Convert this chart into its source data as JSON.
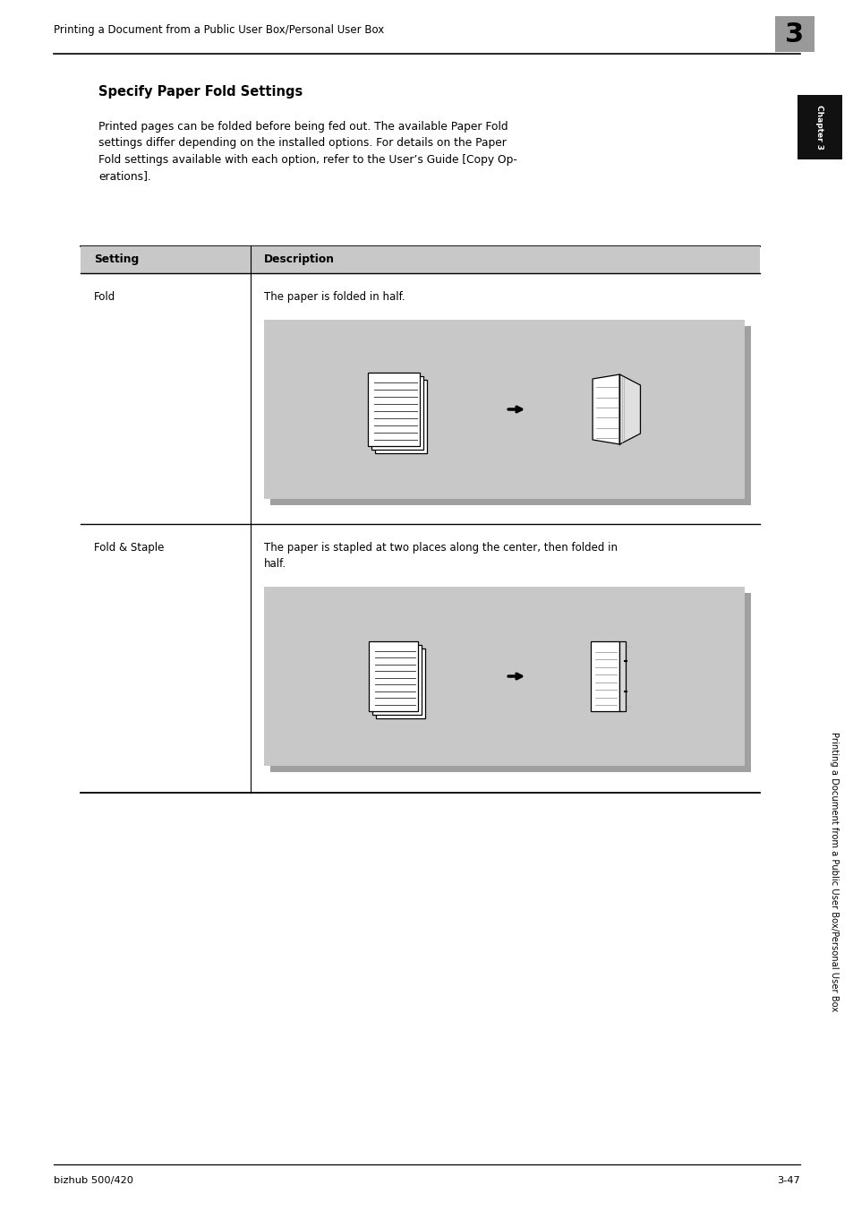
{
  "page_width": 9.54,
  "page_height": 13.52,
  "bg_color": "#ffffff",
  "header_text": "Printing a Document from a Public User Box/Personal User Box",
  "header_chapter_num": "3",
  "header_chapter_bg": "#999999",
  "section_title": "Specify Paper Fold Settings",
  "body_text": "Printed pages can be folded before being fed out. The available Paper Fold\nsettings differ depending on the installed options. For details on the Paper\nFold settings available with each option, refer to the User’s Guide [Copy Op-\nerations].",
  "table_header_bg": "#c8c8c8",
  "table_col1_header": "Setting",
  "table_col2_header": "Description",
  "row1_setting": "Fold",
  "row1_desc": "The paper is folded in half.",
  "row2_setting": "Fold & Staple",
  "row2_desc": "The paper is stapled at two places along the center, then folded in\nhalf.",
  "image_bg": "#c8c8c8",
  "shadow_color": "#a0a0a0",
  "footer_left": "bizhub 500/420",
  "footer_right": "3-47",
  "sidebar_text": "Printing a Document from a Public User Box/Personal User Box",
  "sidebar_chapter": "Chapter 3",
  "sidebar_tab_bg": "#111111",
  "sidebar_tab_text": "#ffffff"
}
